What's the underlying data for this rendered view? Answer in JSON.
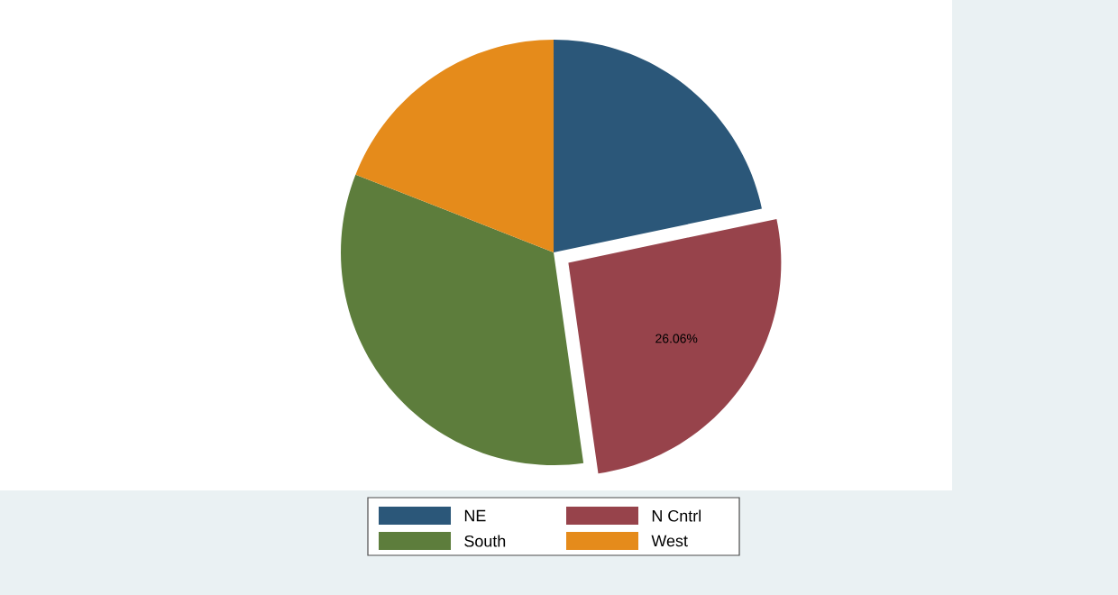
{
  "chart_data": {
    "type": "pie",
    "categories": [
      "NE",
      "N Cntrl",
      "South",
      "West"
    ],
    "values": [
      21.7,
      26.06,
      33.2,
      19.04
    ],
    "colors": [
      "#2b5779",
      "#97434b",
      "#5d7d3c",
      "#e58b1b"
    ],
    "value_labels": [
      null,
      "26.06%",
      null,
      null
    ],
    "legend": "bottom"
  }
}
